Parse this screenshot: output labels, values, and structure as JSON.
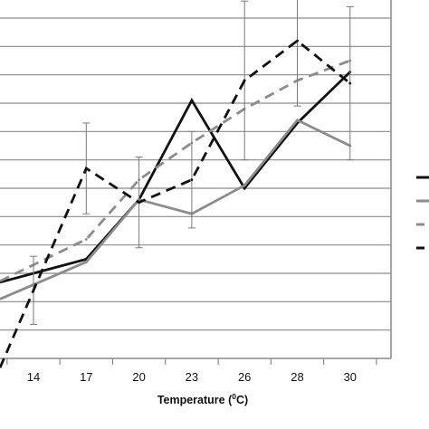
{
  "chart_data": {
    "type": "line",
    "x": [
      14,
      17,
      20,
      23,
      26,
      28,
      30
    ],
    "x_tick_labels": [
      "14",
      "17",
      "20",
      "23",
      "26",
      "28",
      "30"
    ],
    "xlabel": {
      "main": "Temperature (",
      "sup": "0",
      "end": "C)"
    },
    "ylim": [
      0,
      12
    ],
    "grid": true,
    "legend": "right",
    "series": [
      {
        "style": "black-solid",
        "color": "#111111",
        "dash": "solid",
        "y": [
          3.0,
          3.5,
          5.6,
          9.1,
          6.0,
          8.3,
          10.1
        ],
        "err": [
          0,
          0,
          0,
          0,
          0,
          0,
          0
        ]
      },
      {
        "style": "gray-solid",
        "color": "#8c8c8c",
        "dash": "solid",
        "y": [
          2.6,
          3.4,
          5.6,
          5.1,
          6.1,
          8.4,
          7.5
        ],
        "err": [
          0,
          0,
          0,
          0,
          0,
          0,
          0
        ]
      },
      {
        "style": "gray-dashed",
        "color": "#8c8c8c",
        "dash": "dashed",
        "y": [
          3.3,
          4.2,
          6.3,
          7.6,
          8.8,
          9.8,
          10.5
        ],
        "err": [
          0,
          0,
          0,
          0,
          0,
          0,
          0
        ]
      },
      {
        "style": "black-dashed",
        "color": "#111111",
        "dash": "dashed",
        "y": [
          2.4,
          6.7,
          5.5,
          6.3,
          9.8,
          11.2,
          9.7
        ],
        "err": [
          1.2,
          1.6,
          1.6,
          1.7,
          2.8,
          2.3,
          2.7
        ]
      }
    ]
  }
}
